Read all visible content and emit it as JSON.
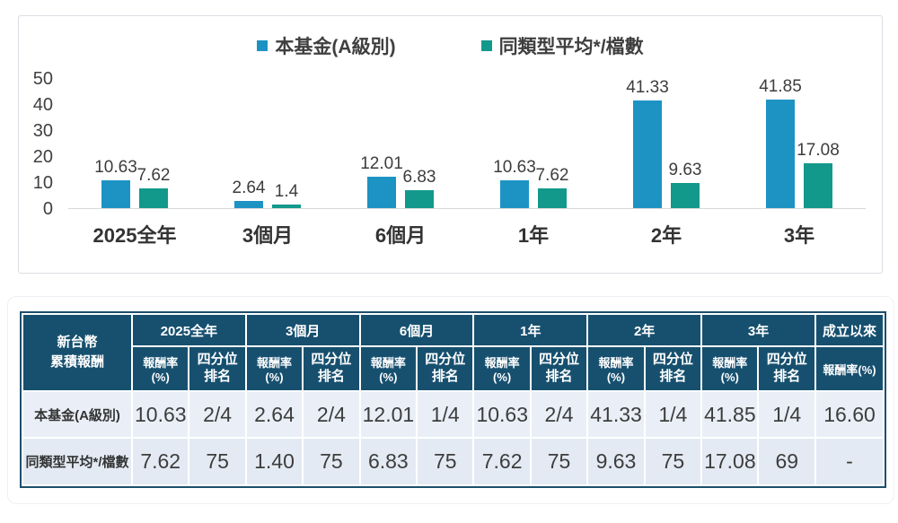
{
  "chart_data": {
    "type": "bar",
    "title": "",
    "categories": [
      "2025全年",
      "3個月",
      "6個月",
      "1年",
      "2年",
      "3年"
    ],
    "series": [
      {
        "name": "本基金(A級別)",
        "color": "#1d93c4",
        "values": [
          10.63,
          2.64,
          12.01,
          10.63,
          41.33,
          41.85
        ],
        "labels": [
          "10.63",
          "2.64",
          "12.01",
          "10.63",
          "41.33",
          "41.85"
        ]
      },
      {
        "name": "同類型平均*/檔數",
        "color": "#12998c",
        "values": [
          7.62,
          1.4,
          6.83,
          7.62,
          9.63,
          17.08
        ],
        "labels": [
          "7.62",
          "1.4",
          "6.83",
          "7.62",
          "9.63",
          "17.08"
        ]
      }
    ],
    "ylim": [
      0,
      50
    ],
    "yticks": [
      50,
      40,
      30,
      20,
      10,
      0
    ],
    "grid": false,
    "legend_position": "top-center"
  },
  "table": {
    "corner_header": "新台幣\n累積報酬",
    "period_headers": [
      "2025全年",
      "3個月",
      "6個月",
      "1年",
      "2年",
      "3年"
    ],
    "rate_subheader": "報酬率(%)",
    "quartile_subheader": "四分位\n排名",
    "since_inception_header": "成立以來",
    "since_inception_subheader": "報酬率(%)",
    "rows": [
      {
        "label": "本基金(A級別)",
        "cells": [
          "10.63",
          "2/4",
          "2.64",
          "2/4",
          "12.01",
          "1/4",
          "10.63",
          "2/4",
          "41.33",
          "1/4",
          "41.85",
          "1/4",
          "16.60"
        ]
      },
      {
        "label": "同類型平均*/檔數",
        "cells": [
          "7.62",
          "75",
          "1.40",
          "75",
          "6.83",
          "75",
          "7.62",
          "75",
          "9.63",
          "75",
          "17.08",
          "69",
          "-"
        ]
      }
    ]
  },
  "colors": {
    "bar_blue": "#1d93c4",
    "bar_teal": "#12998c",
    "table_header_bg": "#17506f",
    "table_row1_bg": "#eaeff7",
    "table_row2_bg": "#e3eaf3",
    "table_border": "#1c4f6d"
  }
}
